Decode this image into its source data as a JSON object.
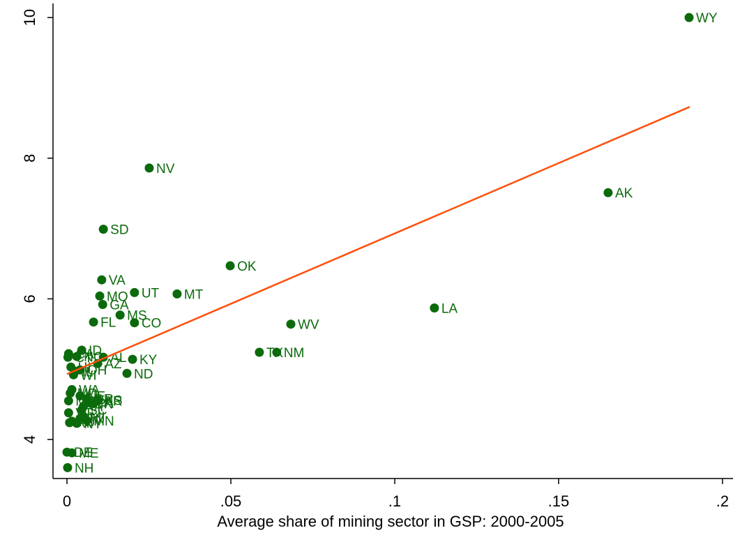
{
  "chart_data": {
    "type": "scatter",
    "x_label": "Average share of mining sector in GSP: 2000-2005",
    "color": "#0b6a0b",
    "labels": [
      "WY",
      "AK",
      "NV",
      "SD",
      "OK",
      "LA",
      "VA",
      "UT",
      "MT",
      "MO",
      "GA",
      "WV",
      "CO",
      "MS",
      "FL",
      "TX",
      "NM",
      "KY",
      "ND",
      "AZ",
      "AL",
      "ID",
      "KS",
      "NH",
      "DE",
      "ME",
      "CA",
      "CT",
      "NC",
      "HI",
      "IL",
      "OH",
      "WI",
      "WA",
      "MD",
      "NE",
      "OR",
      "IA",
      "AR",
      "PA",
      "SC",
      "MA",
      "VT",
      "TN",
      "MN",
      "RI",
      "NJ",
      "NY",
      "MI",
      "IN"
    ],
    "x": [
      0.1898,
      0.1651,
      0.0251,
      0.0111,
      0.0498,
      0.1121,
      0.0106,
      0.0206,
      0.0336,
      0.01,
      0.0109,
      0.0683,
      0.0206,
      0.0162,
      0.0081,
      0.0587,
      0.064,
      0.02,
      0.0183,
      0.0094,
      0.0111,
      0.0045,
      0.0094,
      0.0002,
      0.0,
      0.0015,
      0.0005,
      0.0003,
      0.003,
      0.0012,
      0.0025,
      0.004,
      0.002,
      0.0015,
      0.001,
      0.004,
      0.006,
      0.005,
      0.0092,
      0.007,
      0.0045,
      0.0005,
      0.0005,
      0.004,
      0.006,
      0.0008,
      0.0015,
      0.003,
      0.005,
      0.008
    ],
    "values": [
      10.0,
      7.51,
      7.86,
      6.99,
      6.47,
      5.87,
      6.27,
      6.09,
      6.07,
      6.04,
      5.92,
      5.64,
      5.66,
      5.77,
      5.67,
      5.24,
      5.24,
      5.14,
      4.94,
      5.08,
      5.17,
      5.27,
      4.56,
      3.6,
      3.82,
      3.81,
      5.22,
      5.17,
      5.18,
      5.03,
      4.97,
      4.99,
      4.92,
      4.71,
      4.66,
      4.62,
      4.58,
      4.47,
      4.55,
      4.52,
      4.42,
      4.55,
      4.38,
      4.3,
      4.27,
      4.24,
      4.26,
      4.23,
      4.33,
      4.51
    ],
    "fit_line": {
      "color": "#ff4f0a",
      "x": [
        0,
        0.19
      ],
      "y": [
        4.93,
        8.73
      ]
    },
    "xlim": [
      -0.00426,
      0.2032
    ],
    "ylim": [
      3.445,
      10.2
    ],
    "xticks": [
      0,
      {
        "value": 0.05,
        "label": ".05"
      },
      {
        "value": 0.1,
        "label": ".1"
      },
      {
        "value": 0.15,
        "label": ".15"
      },
      {
        "value": 0.2,
        "label": ".2"
      }
    ],
    "yticks": [
      4,
      6,
      8,
      10
    ]
  }
}
